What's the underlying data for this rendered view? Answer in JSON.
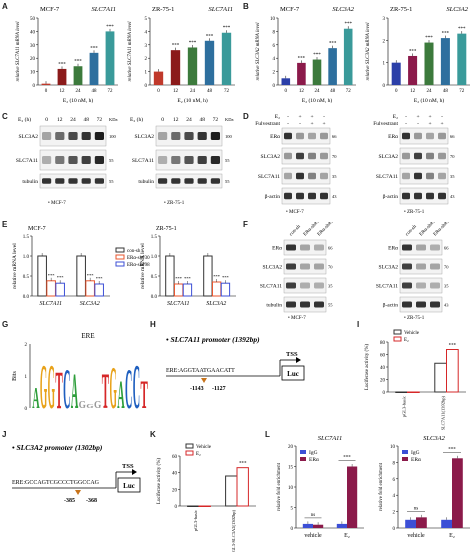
{
  "panels": {
    "A": {
      "label": "A",
      "charts": [
        {
          "cell": "MCF-7",
          "gene": "SLC7A11",
          "ylabel": "relative SLC7A11 mRNA level",
          "xlabel": "E₂ (10 nM, h)",
          "ticks": [
            "0",
            "12",
            "24",
            "48",
            "72"
          ],
          "values": [
            1,
            12,
            14,
            24,
            40
          ],
          "ylim": [
            0,
            50
          ],
          "yticks": [
            "0",
            "10",
            "20",
            "30",
            "40",
            "50"
          ],
          "sig": [
            "",
            "***",
            "***",
            "***",
            "***"
          ]
        },
        {
          "cell": "ZR-75-1",
          "gene": "SLC7A11",
          "ylabel": "relative SLC7A11 mRNA level",
          "xlabel": "E₂ (10 nM, h)",
          "ticks": [
            "0",
            "12",
            "24",
            "48",
            "72"
          ],
          "values": [
            1,
            2.6,
            2.8,
            3.3,
            3.9
          ],
          "ylim": [
            0,
            5
          ],
          "yticks": [
            "0",
            "1",
            "2",
            "3",
            "4",
            "5"
          ],
          "sig": [
            "",
            "***",
            "***",
            "***",
            "***"
          ]
        }
      ]
    },
    "B": {
      "label": "B",
      "charts": [
        {
          "cell": "MCF-7",
          "gene": "SLC3A2",
          "ylabel": "relative SLC3A2 mRNA level",
          "xlabel": "E₂ (10 nM, h)",
          "ticks": [
            "0",
            "12",
            "24",
            "48",
            "72"
          ],
          "values": [
            1,
            3.3,
            3.8,
            5.5,
            8.4
          ],
          "ylim": [
            0,
            10
          ],
          "yticks": [
            "0",
            "2",
            "4",
            "6",
            "8",
            "10"
          ],
          "sig": [
            "",
            "***",
            "***",
            "***",
            "***"
          ]
        },
        {
          "cell": "ZR-75-1",
          "gene": "SLC3A2",
          "ylabel": "relative SLC3A2 mRNA level",
          "xlabel": "E₂ (10 nM, h)",
          "ticks": [
            "0",
            "12",
            "24",
            "48",
            "72"
          ],
          "values": [
            1,
            1.3,
            1.9,
            2.1,
            2.3
          ],
          "ylim": [
            0,
            3
          ],
          "yticks": [
            "0",
            "1",
            "2",
            "3"
          ],
          "sig": [
            "",
            "***",
            "***",
            "***",
            "***"
          ]
        }
      ]
    },
    "C": {
      "label": "C",
      "header": "E₂ (h)",
      "times": [
        "0",
        "12",
        "24",
        "48",
        "72"
      ],
      "kda": "KDa",
      "left": {
        "rows": [
          "SLC3A2",
          "SLC7A11",
          "tubulin"
        ],
        "markers": [
          "100",
          "55",
          "55"
        ],
        "cell": "MCF-7"
      },
      "right": {
        "rows": [
          "SLC3A2",
          "SLC7A11",
          "tubulin"
        ],
        "markers": [
          "100",
          "55",
          "55"
        ],
        "cell": "ZR-75-1"
      }
    },
    "D": {
      "label": "D",
      "e2": "E₂",
      "fulv": "Fulvestrant",
      "signs_e2": [
        "-",
        "+",
        "+",
        "-"
      ],
      "signs_f": [
        "-",
        "-",
        "+",
        "+"
      ],
      "left": {
        "rows": [
          "ERα",
          "SLC3A2",
          "SLC7A11",
          "β-actin"
        ],
        "markers": [
          "66",
          "70",
          "35",
          "43"
        ],
        "cell": "MCF-7"
      },
      "right": {
        "rows": [
          "ERα",
          "SLC3A2",
          "SLC7A11",
          "β-actin"
        ],
        "markers": [
          "66",
          "70",
          "35",
          "43"
        ],
        "cell": "ZR-75-1"
      }
    },
    "E": {
      "label": "E",
      "ylabel": "relative mRNA level",
      "legend": [
        "con-sh",
        "ERα-sh#30",
        "ERα-sh#98"
      ],
      "colors": [
        "#333333",
        "#e8552d",
        "#3c4fd6"
      ],
      "charts": [
        {
          "cell": "MCF-7",
          "groups": [
            "SLC7A11",
            "SLC3A2"
          ],
          "values": [
            [
              1.0,
              0.38,
              0.32
            ],
            [
              1.0,
              0.38,
              0.3
            ]
          ],
          "ylim": [
            0,
            1.5
          ],
          "yticks": [
            "0.0",
            "0.5",
            "1.0",
            "1.5"
          ],
          "sig": "***"
        },
        {
          "cell": "ZR-75-1",
          "groups": [
            "SLC7A11",
            "SLC3A2"
          ],
          "values": [
            [
              1.0,
              0.3,
              0.3
            ],
            [
              1.0,
              0.35,
              0.32
            ]
          ],
          "ylim": [
            0,
            1.5
          ],
          "yticks": [
            "0.0",
            "0.5",
            "1.0",
            "1.5"
          ],
          "sig": "***"
        }
      ]
    },
    "F": {
      "label": "F",
      "cols": [
        "con-sh",
        "ERα-sh#30",
        "ERα-sh#98"
      ],
      "left": {
        "rows": [
          "ERα",
          "SLC3A2",
          "SLC7A11",
          "tubulin"
        ],
        "markers": [
          "66",
          "70",
          "35",
          "55"
        ],
        "cell": "MCF-7"
      },
      "right": {
        "rows": [
          "ERα",
          "SLC3A2",
          "SLC7A11",
          "β-actin"
        ],
        "markers": [
          "66",
          "70",
          "35",
          "43"
        ],
        "cell": "ZR-75-1"
      }
    },
    "G": {
      "label": "G",
      "title": "ERE",
      "ylabel": "Bits",
      "yticks": [
        "0",
        "1",
        "2"
      ],
      "motif": "AGGTCAnnnTGACCT"
    },
    "H": {
      "label": "H",
      "title": "SLC7A11 promoter (1392bp)",
      "seq": "ERE:AGGTAATGAACATT",
      "pos1": "-1143",
      "pos2": "-1127",
      "tss": "TSS",
      "luc": "Luc"
    },
    "I": {
      "label": "I",
      "ylabel": "Luciferase activity (%)",
      "legend": [
        "Vehicle",
        "E₂"
      ],
      "xticks": [
        "pGL3-basic",
        "pGL3-SLC7A11(1392bp)"
      ],
      "values": [
        [
          0,
          0
        ],
        [
          46,
          68
        ]
      ],
      "ylim": [
        0,
        80
      ],
      "yticks": [
        "0",
        "20",
        "40",
        "60",
        "80"
      ],
      "sig": "***"
    },
    "J": {
      "label": "J",
      "title": "SLC3A2 promoter (1302bp)",
      "seq": "ERE:GCCAGTCGCCCTGGCCAG",
      "pos1": "-385",
      "pos2": "-368",
      "tss": "TSS",
      "luc": "Luc"
    },
    "K": {
      "label": "K",
      "ylabel": "Luciferase activity (%)",
      "legend": [
        "Vehicle",
        "E₂"
      ],
      "xticks": [
        "pGL3-basic",
        "pGL3-SLC3A2(1302bp)"
      ],
      "values": [
        [
          0,
          0
        ],
        [
          36,
          46
        ]
      ],
      "ylim": [
        0,
        60
      ],
      "yticks": [
        "0",
        "20",
        "40",
        "60"
      ],
      "sig": "***"
    },
    "L": {
      "label": "L",
      "ylabel": "relative fold enrichment",
      "legend": [
        "IgG",
        "ERα"
      ],
      "colors": [
        "#3c4fd6",
        "#8b1a4a"
      ],
      "charts": [
        {
          "gene": "SLC7A11",
          "xticks": [
            "vehicle",
            "E₂"
          ],
          "values": [
            [
              1,
              0.8
            ],
            [
              1,
              15
            ]
          ],
          "ylim": [
            0,
            20
          ],
          "yticks": [
            "0",
            "5",
            "10",
            "15",
            "20"
          ],
          "sig": [
            "ns",
            "***"
          ]
        },
        {
          "gene": "SLC3A2",
          "xticks": [
            "vehicle",
            "E₂"
          ],
          "values": [
            [
              1,
              1.3
            ],
            [
              1,
              8.5
            ]
          ],
          "ylim": [
            0,
            10
          ],
          "yticks": [
            "0",
            "2",
            "4",
            "6",
            "8",
            "10"
          ],
          "sig": [
            "ns",
            "***"
          ]
        }
      ]
    }
  }
}
